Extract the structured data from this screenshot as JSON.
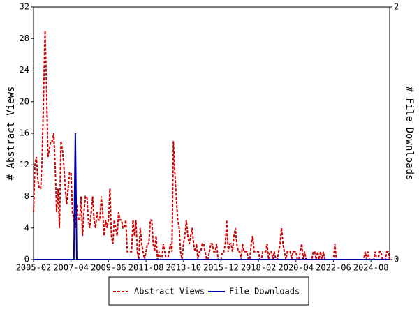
{
  "chart_data": {
    "type": "line",
    "ylabel": "# Abstract Views",
    "y2label": "# File Downloads",
    "ylim": [
      0,
      32
    ],
    "yticks": [
      0,
      4,
      8,
      12,
      16,
      20,
      24,
      28,
      32
    ],
    "y2lim": [
      0,
      2
    ],
    "y2ticks": [
      0,
      2
    ],
    "xticks": [
      "2005-02",
      "2007-04",
      "2009-06",
      "2011-08",
      "2013-10",
      "2015-12",
      "2018-02",
      "2020-04",
      "2022-06",
      "2024-08"
    ],
    "x": [
      "2005-02",
      "2005-03",
      "2005-04",
      "2005-05",
      "2005-06",
      "2005-07",
      "2005-08",
      "2005-09",
      "2005-10",
      "2005-11",
      "2005-12",
      "2006-01",
      "2006-02",
      "2006-03",
      "2006-04",
      "2006-05",
      "2006-06",
      "2006-07",
      "2006-08",
      "2006-09",
      "2006-10",
      "2006-11",
      "2006-12",
      "2007-01",
      "2007-02",
      "2007-03",
      "2007-04",
      "2007-05",
      "2007-06",
      "2007-07",
      "2007-08",
      "2007-09",
      "2007-10",
      "2007-11",
      "2007-12",
      "2008-01",
      "2008-02",
      "2008-03",
      "2008-04",
      "2008-05",
      "2008-06",
      "2008-07",
      "2008-08",
      "2008-09",
      "2008-10",
      "2008-11",
      "2008-12",
      "2009-01",
      "2009-02",
      "2009-03",
      "2009-04",
      "2009-05",
      "2009-06",
      "2009-07",
      "2009-08",
      "2009-09",
      "2009-10",
      "2009-11",
      "2009-12",
      "2010-01",
      "2010-02",
      "2010-03",
      "2010-04",
      "2010-05",
      "2010-06",
      "2010-07",
      "2010-08",
      "2010-09",
      "2010-10",
      "2010-11",
      "2010-12",
      "2011-01",
      "2011-02",
      "2011-03",
      "2011-04",
      "2011-05",
      "2011-06",
      "2011-07",
      "2011-08",
      "2011-09",
      "2011-10",
      "2011-11",
      "2011-12",
      "2012-01",
      "2012-02",
      "2012-03",
      "2012-04",
      "2012-05",
      "2012-06",
      "2012-07",
      "2012-08",
      "2012-09",
      "2012-10",
      "2012-11",
      "2012-12",
      "2013-01",
      "2013-02",
      "2013-03",
      "2013-04",
      "2013-05",
      "2013-06",
      "2013-07",
      "2013-08",
      "2013-09",
      "2013-10",
      "2013-11",
      "2013-12",
      "2014-01",
      "2014-02",
      "2014-03",
      "2014-04",
      "2014-05",
      "2014-06",
      "2014-07",
      "2014-08",
      "2014-09",
      "2014-10",
      "2014-11",
      "2014-12",
      "2015-01",
      "2015-02",
      "2015-03",
      "2015-04",
      "2015-05",
      "2015-06",
      "2015-07",
      "2015-08",
      "2015-09",
      "2015-10",
      "2015-11",
      "2015-12",
      "2016-01",
      "2016-02",
      "2016-03",
      "2016-04",
      "2016-05",
      "2016-06",
      "2016-07",
      "2016-08",
      "2016-09",
      "2016-10",
      "2016-11",
      "2016-12",
      "2017-01",
      "2017-02",
      "2017-03",
      "2017-04",
      "2017-05",
      "2017-06",
      "2017-07",
      "2017-08",
      "2017-09",
      "2017-10",
      "2017-11",
      "2017-12",
      "2018-01",
      "2018-02",
      "2018-03",
      "2018-04",
      "2018-05",
      "2018-06",
      "2018-07",
      "2018-08",
      "2018-09",
      "2018-10",
      "2018-11",
      "2018-12",
      "2019-01",
      "2019-02",
      "2019-03",
      "2019-04",
      "2019-05",
      "2019-06",
      "2019-07",
      "2019-08",
      "2019-09",
      "2019-10",
      "2019-11",
      "2019-12",
      "2020-01",
      "2020-02",
      "2020-03",
      "2020-04",
      "2020-05",
      "2020-06",
      "2020-07",
      "2020-08",
      "2020-09",
      "2020-10",
      "2020-11",
      "2020-12",
      "2021-01",
      "2021-02",
      "2021-03",
      "2021-04",
      "2021-05",
      "2021-06",
      "2021-07",
      "2021-08",
      "2021-09",
      "2021-10",
      "2021-11",
      "2021-12",
      "2022-01",
      "2022-02",
      "2022-03",
      "2022-04",
      "2022-05",
      "2022-06",
      "2022-07",
      "2022-08",
      "2022-09",
      "2022-10",
      "2022-11",
      "2022-12",
      "2023-01",
      "2023-02",
      "2023-03",
      "2023-04",
      "2023-05",
      "2023-06",
      "2023-07",
      "2023-08",
      "2023-09",
      "2023-10",
      "2023-11",
      "2023-12",
      "2024-01",
      "2024-02",
      "2024-03",
      "2024-04",
      "2024-05",
      "2024-06",
      "2024-07",
      "2024-08",
      "2024-09",
      "2024-10",
      "2024-11",
      "2024-12",
      "2025-01",
      "2025-02",
      "2025-03",
      "2025-04",
      "2025-05",
      "2025-06",
      "2025-07",
      "2025-08",
      "2025-09"
    ],
    "series": [
      {
        "name": "Abstract Views",
        "color": "#cc0000",
        "axis": "y",
        "values": [
          6,
          12,
          13,
          10,
          9,
          9,
          13,
          21,
          29,
          22,
          13,
          14,
          15,
          15,
          16,
          12,
          6,
          9,
          4,
          15,
          14,
          12,
          9,
          7,
          9,
          11,
          11,
          6,
          5,
          4,
          7,
          5,
          5,
          8,
          3,
          6,
          8,
          8,
          5,
          4,
          6,
          8,
          5,
          4,
          6,
          5,
          5,
          8,
          6,
          3,
          5,
          4,
          5,
          9,
          3,
          2,
          5,
          4,
          3,
          6,
          5,
          5,
          4,
          4,
          5,
          1,
          1,
          1,
          1,
          5,
          3,
          5,
          1,
          0,
          4,
          2,
          1,
          0,
          1,
          2,
          2,
          5,
          5,
          2,
          1,
          3,
          0,
          1,
          0,
          0,
          2,
          1,
          0,
          0,
          1,
          2,
          1,
          15,
          11,
          8,
          5,
          4,
          1,
          0,
          2,
          3,
          5,
          3,
          2,
          3,
          4,
          2,
          1,
          2,
          0,
          1,
          1,
          2,
          2,
          1,
          0,
          0,
          1,
          2,
          2,
          1,
          1,
          2,
          0,
          0,
          0,
          1,
          1,
          2,
          5,
          1,
          2,
          2,
          1,
          3,
          4,
          2,
          1,
          1,
          0,
          2,
          1,
          1,
          1,
          0,
          0,
          2,
          3,
          1,
          1,
          1,
          1,
          0,
          0,
          1,
          1,
          1,
          2,
          0,
          1,
          1,
          0,
          1,
          0,
          0,
          1,
          2,
          4,
          2,
          1,
          0,
          1,
          1,
          1,
          0,
          1,
          1,
          1,
          0,
          0,
          1,
          2,
          0,
          1,
          0,
          0,
          0,
          0,
          0,
          1,
          1,
          0,
          1,
          0,
          1,
          0,
          1,
          0,
          0,
          0,
          0,
          0,
          0,
          0,
          2,
          0,
          0,
          0,
          0,
          0,
          0,
          0,
          0,
          0,
          0,
          0,
          0,
          0,
          0,
          0,
          0,
          0,
          0,
          0,
          0,
          1,
          0,
          1,
          0,
          0,
          0,
          0,
          1,
          0,
          0,
          1,
          1,
          0,
          0,
          0,
          1,
          1,
          0
        ]
      },
      {
        "name": "File Downloads",
        "color": "#0000aa",
        "axis": "y2",
        "values": [
          0,
          0,
          0,
          0,
          0,
          0,
          0,
          0,
          0,
          0,
          0,
          0,
          0,
          0,
          0,
          0,
          0,
          0,
          0,
          0,
          0,
          0,
          0,
          0,
          0,
          0,
          0,
          0,
          0,
          1,
          0,
          0,
          0,
          0,
          0,
          0,
          0,
          0,
          0,
          0,
          0,
          0,
          0,
          0,
          0,
          0,
          0,
          0,
          0,
          0,
          0,
          0,
          0,
          0,
          0,
          0,
          0,
          0,
          0,
          0,
          0,
          0,
          0,
          0,
          0,
          0,
          0,
          0,
          0,
          0,
          0,
          0,
          0,
          0,
          0,
          0,
          0,
          0,
          0,
          0,
          0,
          0,
          0,
          0,
          0,
          0,
          0,
          0,
          0,
          0,
          0,
          0,
          0,
          0,
          0,
          0,
          0,
          0,
          0,
          0,
          0,
          0,
          0,
          0,
          0,
          0,
          0,
          0,
          0,
          0,
          0,
          0,
          0,
          0,
          0,
          0,
          0,
          0,
          0,
          0,
          0,
          0,
          0,
          0,
          0,
          0,
          0,
          0,
          0,
          0,
          0,
          0,
          0,
          0,
          0,
          0,
          0,
          0,
          0,
          0,
          0,
          0,
          0,
          0,
          0,
          0,
          0,
          0,
          0,
          0,
          0,
          0,
          0,
          0,
          0,
          0,
          0,
          0,
          0,
          0,
          0,
          0,
          0,
          0,
          0,
          0,
          0,
          0,
          0,
          0,
          0,
          0,
          0,
          0,
          0,
          0,
          0,
          0,
          0,
          0,
          0,
          0,
          0,
          0,
          0,
          0,
          0,
          0,
          0,
          0,
          0,
          0,
          0,
          0,
          0,
          0,
          0,
          0,
          0,
          0,
          0,
          0,
          0,
          0,
          0,
          0,
          0,
          0,
          0,
          0,
          0,
          0,
          0,
          0,
          0,
          0,
          0,
          0,
          0,
          0,
          0,
          0,
          0,
          0,
          0,
          0,
          0,
          0,
          0,
          0,
          0,
          0,
          0,
          0,
          0,
          0,
          0,
          0,
          0,
          0,
          0,
          0,
          0,
          0,
          0,
          0,
          0,
          0
        ]
      }
    ]
  }
}
